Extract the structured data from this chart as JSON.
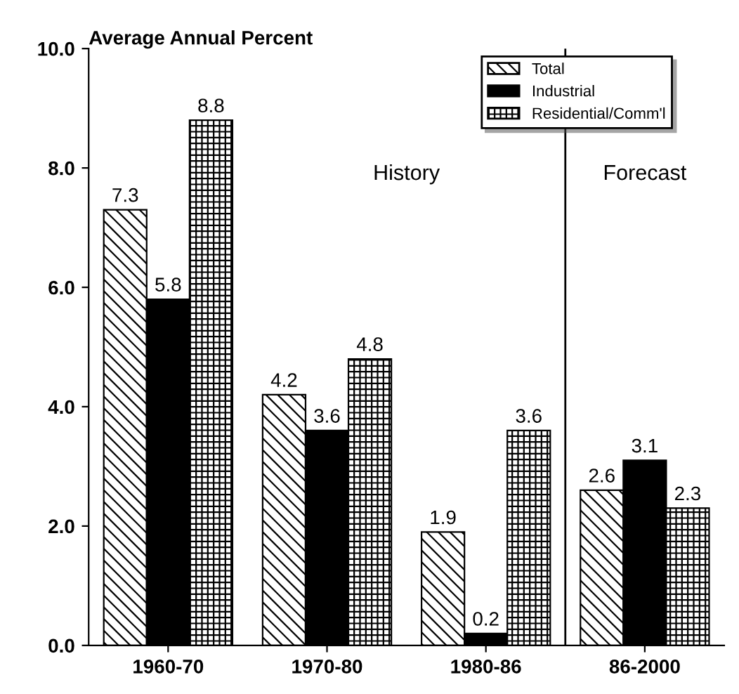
{
  "chart_data": {
    "type": "bar",
    "ylabel": "Average Annual Percent",
    "categories": [
      "1960-70",
      "1970-80",
      "1980-86",
      "86-2000"
    ],
    "series": [
      {
        "name": "Total",
        "color": "#000000",
        "values": [
          7.3,
          4.2,
          1.9,
          2.6
        ]
      },
      {
        "name": "Industrial",
        "color": "#000000",
        "values": [
          5.8,
          3.6,
          0.2,
          3.1
        ]
      },
      {
        "name": "Residential/Comm'l",
        "color": "#000000",
        "values": [
          8.8,
          4.8,
          3.6,
          2.3
        ]
      }
    ],
    "ylim": [
      0,
      10
    ],
    "yticks": [
      {
        "value": 0,
        "label": "0.0"
      },
      {
        "value": 2,
        "label": "2.0"
      },
      {
        "value": 4,
        "label": "4.0"
      },
      {
        "value": 6,
        "label": "6.0"
      },
      {
        "value": 8,
        "label": "8.0"
      },
      {
        "value": 10,
        "label": "10.0"
      }
    ],
    "annotations": [
      "History",
      "Forecast"
    ],
    "data_labels": true,
    "grid": false,
    "legend": "top right"
  }
}
